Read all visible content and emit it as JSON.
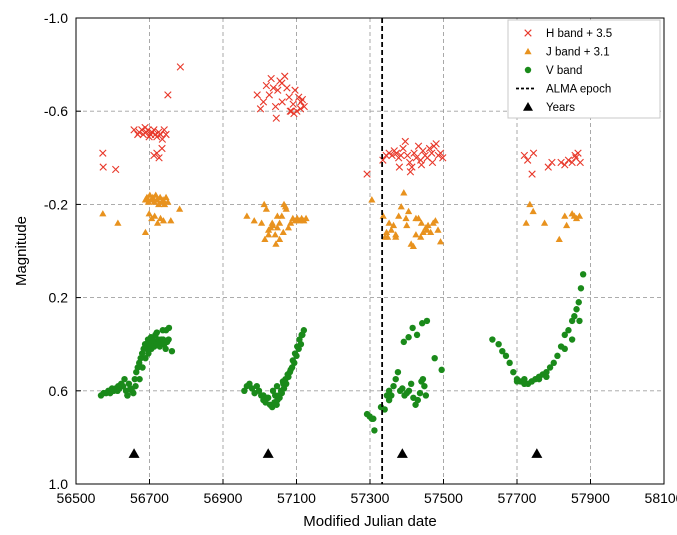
{
  "chart_data": {
    "type": "scatter",
    "xlabel": "Modified Julian date",
    "ylabel": "Magnitude",
    "xlim": [
      56500,
      58100
    ],
    "ylim": [
      1.0,
      -1.0
    ],
    "y_inverted": true,
    "grid": true,
    "grid_style": "dashed",
    "legend_position": "top-right",
    "x_ticks": [
      56500,
      56700,
      56900,
      57100,
      57300,
      57500,
      57700,
      57900,
      58100
    ],
    "x_tick_labels": [
      "56500",
      "56700",
      "56900",
      "57100",
      "57300",
      "57500",
      "57700",
      "57900",
      "58100"
    ],
    "y_ticks": [
      -1.0,
      -0.6,
      -0.2,
      0.2,
      0.6,
      1.0
    ],
    "y_tick_labels": [
      "-1.0",
      "-0.6",
      "-0.2",
      "0.2",
      "0.6",
      "1.0"
    ],
    "alma_epoch": 57333,
    "years": [
      56658,
      57023,
      57388,
      57754
    ],
    "years_y": 0.87,
    "series": [
      {
        "name": "H band + 3.5",
        "marker": "x",
        "color": "#e8382a",
        "x": [
          56573,
          56574,
          56608,
          56658,
          56668,
          56672,
          56679,
          56683,
          56688,
          56691,
          56696,
          56699,
          56703,
          56707,
          56712,
          56716,
          56720,
          56725,
          56730,
          56735,
          56740,
          56745,
          56712,
          56720,
          56726,
          56734,
          56750,
          56784,
          56993,
          57002,
          57010,
          57018,
          57026,
          57031,
          57037,
          57043,
          57049,
          57055,
          57061,
          57068,
          57074,
          57080,
          57086,
          57091,
          57096,
          57101,
          57106,
          57111,
          57116,
          57121,
          57045,
          57060,
          57083,
          57093,
          57112,
          57292,
          57335,
          57344,
          57352,
          57360,
          57366,
          57372,
          57378,
          57384,
          57390,
          57396,
          57402,
          57408,
          57414,
          57420,
          57426,
          57432,
          57438,
          57444,
          57450,
          57456,
          57462,
          57468,
          57474,
          57480,
          57486,
          57492,
          57498,
          57380,
          57410,
          57440,
          57470,
          57720,
          57729,
          57741,
          57785,
          57795,
          57820,
          57830,
          57840,
          57850,
          57860,
          57866,
          57872,
          57745,
          57858
        ],
        "y": [
          -0.42,
          -0.36,
          -0.35,
          -0.52,
          -0.5,
          -0.51,
          -0.52,
          -0.5,
          -0.53,
          -0.51,
          -0.52,
          -0.49,
          -0.5,
          -0.51,
          -0.52,
          -0.5,
          -0.49,
          -0.51,
          -0.5,
          -0.48,
          -0.52,
          -0.5,
          -0.41,
          -0.42,
          -0.4,
          -0.44,
          -0.67,
          -0.79,
          -0.67,
          -0.61,
          -0.64,
          -0.71,
          -0.67,
          -0.74,
          -0.7,
          -0.62,
          -0.69,
          -0.73,
          -0.64,
          -0.75,
          -0.7,
          -0.66,
          -0.6,
          -0.63,
          -0.69,
          -0.6,
          -0.66,
          -0.61,
          -0.65,
          -0.62,
          -0.57,
          -0.72,
          -0.6,
          -0.59,
          -0.64,
          -0.33,
          -0.39,
          -0.41,
          -0.42,
          -0.41,
          -0.43,
          -0.42,
          -0.4,
          -0.41,
          -0.44,
          -0.47,
          -0.41,
          -0.38,
          -0.36,
          -0.42,
          -0.4,
          -0.45,
          -0.39,
          -0.43,
          -0.41,
          -0.4,
          -0.44,
          -0.42,
          -0.45,
          -0.46,
          -0.41,
          -0.42,
          -0.4,
          -0.36,
          -0.34,
          -0.37,
          -0.38,
          -0.41,
          -0.39,
          -0.33,
          -0.36,
          -0.38,
          -0.38,
          -0.37,
          -0.39,
          -0.38,
          -0.4,
          -0.42,
          -0.38,
          -0.42,
          -0.41
        ]
      },
      {
        "name": "J band + 3.1",
        "marker": "triangle",
        "color": "#e8921e",
        "x": [
          56573,
          56614,
          56689,
          56693,
          56697,
          56701,
          56705,
          56709,
          56713,
          56717,
          56721,
          56725,
          56729,
          56733,
          56737,
          56741,
          56745,
          56750,
          56758,
          56699,
          56706,
          56714,
          56722,
          56730,
          56738,
          56782,
          56689,
          56965,
          56985,
          57005,
          57012,
          57018,
          57024,
          57030,
          57036,
          57042,
          57048,
          57054,
          57060,
          57066,
          57072,
          57078,
          57084,
          57090,
          57096,
          57102,
          57108,
          57114,
          57120,
          57126,
          57014,
          57024,
          57034,
          57044,
          57054,
          57064,
          57048,
          57070,
          57305,
          57345,
          57352,
          57358,
          57364,
          57370,
          57378,
          57385,
          57392,
          57398,
          57405,
          57412,
          57418,
          57425,
          57432,
          57438,
          57445,
          57452,
          57458,
          57465,
          57472,
          57478,
          57485,
          57492,
          57336,
          57341,
          57348,
          57370,
          57400,
          57425,
          57440,
          57455,
          57725,
          57735,
          57775,
          57815,
          57835,
          57850,
          57856,
          57862,
          57870,
          57744,
          57830
        ],
        "y": [
          -0.16,
          -0.12,
          -0.22,
          -0.23,
          -0.21,
          -0.24,
          -0.22,
          -0.23,
          -0.21,
          -0.24,
          -0.22,
          -0.2,
          -0.23,
          -0.21,
          -0.22,
          -0.2,
          -0.23,
          -0.21,
          -0.13,
          -0.16,
          -0.14,
          -0.15,
          -0.12,
          -0.14,
          -0.13,
          -0.18,
          -0.08,
          -0.15,
          -0.13,
          -0.12,
          -0.2,
          -0.18,
          -0.09,
          -0.1,
          -0.11,
          -0.07,
          -0.1,
          -0.12,
          -0.15,
          -0.2,
          -0.18,
          -0.1,
          -0.12,
          -0.14,
          -0.13,
          -0.14,
          -0.13,
          -0.14,
          -0.13,
          -0.14,
          -0.05,
          -0.07,
          -0.12,
          -0.03,
          -0.05,
          -0.08,
          -0.15,
          -0.19,
          -0.22,
          -0.08,
          -0.12,
          -0.09,
          -0.11,
          -0.06,
          -0.15,
          -0.19,
          -0.25,
          -0.14,
          -0.17,
          -0.03,
          -0.02,
          -0.07,
          -0.14,
          -0.06,
          -0.08,
          -0.1,
          -0.11,
          -0.08,
          -0.12,
          -0.13,
          -0.09,
          -0.04,
          -0.15,
          -0.06,
          -0.06,
          -0.07,
          -0.11,
          -0.14,
          -0.12,
          -0.09,
          -0.12,
          -0.2,
          -0.12,
          -0.05,
          -0.11,
          -0.16,
          -0.15,
          -0.14,
          -0.15,
          -0.17,
          -0.15
        ]
      },
      {
        "name": "V band",
        "marker": "circle",
        "color": "#1a8a1a",
        "x": [
          56568,
          56575,
          56582,
          56588,
          56593,
          56598,
          56603,
          56608,
          56613,
          56618,
          56623,
          56628,
          56632,
          56636,
          56640,
          56644,
          56648,
          56652,
          56656,
          56660,
          56664,
          56668,
          56672,
          56676,
          56680,
          56684,
          56688,
          56692,
          56696,
          56700,
          56704,
          56708,
          56712,
          56716,
          56720,
          56724,
          56728,
          56732,
          56736,
          56740,
          56744,
          56748,
          56752,
          56615,
          56640,
          56662,
          56673,
          56681,
          56689,
          56697,
          56705,
          56713,
          56721,
          56729,
          56737,
          56745,
          56753,
          56761,
          56958,
          56965,
          56972,
          56979,
          56986,
          56992,
          56998,
          57004,
          57010,
          57016,
          57022,
          57028,
          57034,
          57040,
          57046,
          57052,
          57058,
          57064,
          57070,
          57076,
          57082,
          57088,
          57094,
          57100,
          57106,
          57112,
          57116,
          57120,
          57036,
          57042,
          57048,
          57054,
          57060,
          57066,
          57072,
          57078,
          57084,
          57090,
          57096,
          57102,
          57108,
          57114,
          57010,
          57023,
          57047,
          57063,
          57292,
          57299,
          57305,
          57309,
          57312,
          57340,
          57346,
          57352,
          57358,
          57364,
          57370,
          57376,
          57382,
          57388,
          57394,
          57400,
          57406,
          57412,
          57418,
          57424,
          57430,
          57436,
          57440,
          57444,
          57448,
          57452,
          57392,
          57405,
          57416,
          57428,
          57442,
          57455,
          57476,
          57495,
          57352,
          57330,
          57633,
          57650,
          57660,
          57670,
          57680,
          57690,
          57700,
          57710,
          57720,
          57730,
          57740,
          57750,
          57760,
          57770,
          57780,
          57790,
          57800,
          57810,
          57820,
          57830,
          57840,
          57850,
          57856,
          57862,
          57868,
          57874,
          57880,
          57700,
          57720,
          57740,
          57760,
          57780,
          57830,
          57850,
          57870
        ],
        "y": [
          0.62,
          0.61,
          0.61,
          0.6,
          0.61,
          0.59,
          0.6,
          0.59,
          0.6,
          0.59,
          0.57,
          0.58,
          0.55,
          0.6,
          0.62,
          0.57,
          0.59,
          0.6,
          0.61,
          0.55,
          0.52,
          0.5,
          0.48,
          0.46,
          0.44,
          0.42,
          0.4,
          0.42,
          0.38,
          0.4,
          0.37,
          0.38,
          0.39,
          0.36,
          0.35,
          0.38,
          0.41,
          0.38,
          0.34,
          0.4,
          0.42,
          0.39,
          0.38,
          0.58,
          0.62,
          0.58,
          0.55,
          0.5,
          0.46,
          0.44,
          0.42,
          0.41,
          0.4,
          0.39,
          0.38,
          0.34,
          0.33,
          0.43,
          0.6,
          0.58,
          0.57,
          0.59,
          0.61,
          0.58,
          0.6,
          0.62,
          0.64,
          0.65,
          0.63,
          0.66,
          0.67,
          0.65,
          0.66,
          0.62,
          0.6,
          0.57,
          0.55,
          0.53,
          0.52,
          0.5,
          0.48,
          0.45,
          0.42,
          0.4,
          0.36,
          0.34,
          0.6,
          0.62,
          0.64,
          0.63,
          0.61,
          0.59,
          0.57,
          0.54,
          0.51,
          0.47,
          0.44,
          0.41,
          0.38,
          0.36,
          0.62,
          0.63,
          0.58,
          0.56,
          0.7,
          0.71,
          0.72,
          0.72,
          0.77,
          0.68,
          0.62,
          0.6,
          0.62,
          0.58,
          0.55,
          0.52,
          0.6,
          0.59,
          0.62,
          0.61,
          0.6,
          0.57,
          0.63,
          0.66,
          0.64,
          0.61,
          0.56,
          0.55,
          0.58,
          0.62,
          0.39,
          0.37,
          0.33,
          0.36,
          0.31,
          0.3,
          0.46,
          0.51,
          0.64,
          0.67,
          0.38,
          0.4,
          0.43,
          0.45,
          0.48,
          0.52,
          0.55,
          0.56,
          0.55,
          0.57,
          0.56,
          0.55,
          0.54,
          0.53,
          0.52,
          0.5,
          0.48,
          0.45,
          0.41,
          0.36,
          0.34,
          0.3,
          0.28,
          0.25,
          0.22,
          0.16,
          0.1,
          0.56,
          0.57,
          0.56,
          0.55,
          0.54,
          0.42,
          0.38,
          0.3
        ]
      }
    ],
    "legend": [
      {
        "label": "H band + 3.5",
        "symbol": "x",
        "color": "#e8382a"
      },
      {
        "label": "J band + 3.1",
        "symbol": "triangle",
        "color": "#e8921e"
      },
      {
        "label": "V band",
        "symbol": "circle",
        "color": "#1a8a1a"
      },
      {
        "label": "ALMA epoch",
        "symbol": "dashed-line",
        "color": "#000000"
      },
      {
        "label": "Years",
        "symbol": "triangle",
        "color": "#000000"
      }
    ]
  }
}
